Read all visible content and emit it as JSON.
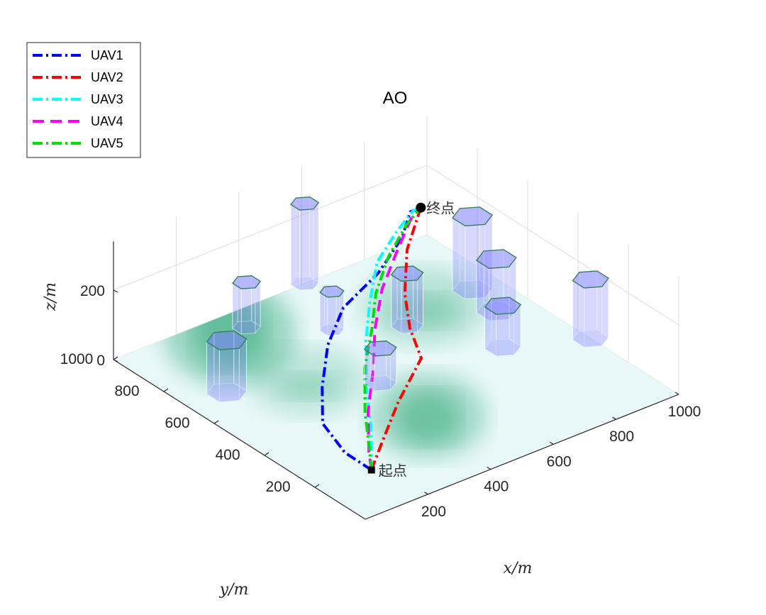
{
  "chart_data": {
    "type": "line",
    "title": "AO",
    "xlabel": "x/m",
    "ylabel": "y/m",
    "zlabel": "z/m",
    "xlim": [
      0,
      1000
    ],
    "ylim": [
      0,
      1000
    ],
    "zlim": [
      0,
      300
    ],
    "x_ticks": [
      "200",
      "400",
      "600",
      "800",
      "1000"
    ],
    "y_ticks": [
      "200",
      "400",
      "600",
      "800",
      "1000"
    ],
    "z_ticks": [
      "0",
      "200"
    ],
    "x_tick_values": [
      200,
      400,
      600,
      800,
      1000
    ],
    "y_tick_values": [
      200,
      400,
      600,
      800,
      1000
    ],
    "z_tick_values": [
      0,
      200
    ],
    "grid": true,
    "legend_position": "top-left",
    "start": {
      "label": "起点",
      "x": 100,
      "y": 100,
      "z": 60
    },
    "end": {
      "label": "终点",
      "x": 900,
      "y": 900,
      "z": 160
    },
    "series": [
      {
        "name": "UAV1",
        "color": "#0000ff",
        "dash": "dashdot",
        "x": [
          100,
          80,
          105,
          200,
          330,
          460,
          620,
          760,
          850,
          900
        ],
        "y": [
          100,
          180,
          300,
          420,
          560,
          660,
          720,
          800,
          880,
          900
        ],
        "z": [
          60,
          80,
          100,
          115,
          125,
          140,
          155,
          170,
          175,
          160
        ]
      },
      {
        "name": "UAV2",
        "color": "#ff0000",
        "dash": "dashdot",
        "x": [
          100,
          190,
          330,
          500,
          560,
          640,
          760,
          900
        ],
        "y": [
          100,
          170,
          280,
          400,
          520,
          640,
          780,
          900
        ],
        "z": [
          60,
          75,
          90,
          100,
          110,
          125,
          145,
          160
        ]
      },
      {
        "name": "UAV3",
        "color": "#00ffff",
        "dash": "dashdot",
        "x": [
          100,
          140,
          210,
          300,
          420,
          520,
          640,
          760,
          860,
          900
        ],
        "y": [
          100,
          150,
          240,
          370,
          520,
          630,
          750,
          820,
          880,
          900
        ],
        "z": [
          60,
          75,
          90,
          105,
          125,
          145,
          165,
          180,
          175,
          160
        ]
      },
      {
        "name": "UAV4",
        "color": "#ff00ff",
        "dash": "dashed",
        "x": [
          100,
          140,
          250,
          380,
          480,
          600,
          720,
          840,
          900
        ],
        "y": [
          100,
          160,
          300,
          440,
          560,
          680,
          770,
          860,
          900
        ],
        "z": [
          60,
          70,
          85,
          100,
          115,
          135,
          160,
          175,
          160
        ]
      },
      {
        "name": "UAV5",
        "color": "#00dd00",
        "dash": "dashdot",
        "x": [
          100,
          150,
          240,
          360,
          470,
          580,
          700,
          820,
          900
        ],
        "y": [
          100,
          170,
          300,
          450,
          560,
          680,
          780,
          860,
          900
        ],
        "z": [
          60,
          70,
          85,
          100,
          115,
          130,
          145,
          155,
          160
        ]
      }
    ],
    "obstacles": [
      {
        "x": 120,
        "y": 700,
        "r": 50,
        "h": 150
      },
      {
        "x": 450,
        "y": 500,
        "r": 40,
        "h": 100
      },
      {
        "x": 360,
        "y": 920,
        "r": 35,
        "h": 130
      },
      {
        "x": 520,
        "y": 780,
        "r": 30,
        "h": 110
      },
      {
        "x": 610,
        "y": 1000,
        "r": 35,
        "h": 230
      },
      {
        "x": 680,
        "y": 680,
        "r": 40,
        "h": 150
      },
      {
        "x": 920,
        "y": 720,
        "r": 50,
        "h": 210
      },
      {
        "x": 900,
        "y": 600,
        "r": 50,
        "h": 150
      },
      {
        "x": 800,
        "y": 450,
        "r": 45,
        "h": 120
      },
      {
        "x": 1000,
        "y": 350,
        "r": 45,
        "h": 170
      }
    ],
    "terrain_peaks": [
      {
        "x": 250,
        "y": 850,
        "h": 160,
        "s": 170
      },
      {
        "x": 400,
        "y": 250,
        "h": 110,
        "s": 150
      },
      {
        "x": 750,
        "y": 700,
        "h": 60,
        "s": 160
      },
      {
        "x": 300,
        "y": 600,
        "h": 40,
        "s": 150
      }
    ]
  },
  "colors": {
    "obstacle_fill": "#7b7bff",
    "obstacle_edge": "#2e7d4f",
    "terrain_low": "#e8f8f8",
    "terrain_high": "#3fae84"
  }
}
